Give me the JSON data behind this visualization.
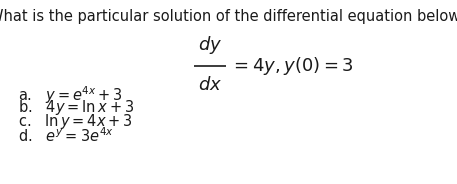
{
  "title": "What is the particular solution of the differential equation below?",
  "options": [
    "a.   $y = e^{4x} + 3$",
    "b.   $4y = \\ln x + 3$",
    "c.   $\\ln y = 4x + 3$",
    "d.   $e^{y} = 3e^{4x}$"
  ],
  "bg_color": "#ffffff",
  "text_color": "#1a1a1a",
  "title_fontsize": 10.5,
  "option_fontsize": 10.5,
  "eq_fontsize": 13
}
